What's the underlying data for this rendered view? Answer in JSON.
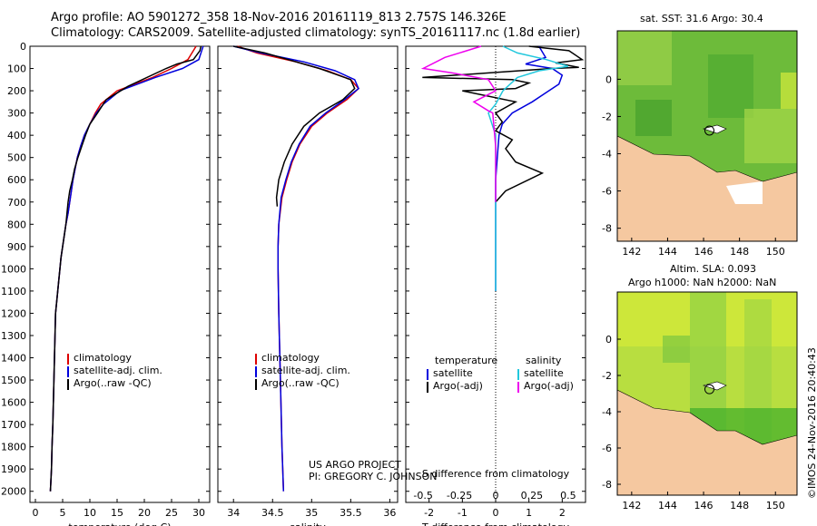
{
  "header": {
    "title_line1": "Argo profile: AO 5901272_358 18-Nov-2016 20161119_813 2.757S 146.326E",
    "title_line2": "Climatology: CARS2009. Satellite-adjusted climatology: synTS_20161117.nc (1.8d earlier)"
  },
  "credits": {
    "line1": "US ARGO PROJECT",
    "line2": "PI: GREGORY C. JOHNSON"
  },
  "maps": {
    "sst_title": "sat. SST: 31.6 Argo: 30.4",
    "sla_line1": "Altim. SLA: 0.093",
    "sla_line2": "Argo h1000: NaN h2000: NaN",
    "x_ticks": [
      "142",
      "144",
      "146",
      "148",
      "150"
    ],
    "y_ticks": [
      "0",
      "-2",
      "-4",
      "-6",
      "-8"
    ],
    "float_lon": 146.326,
    "float_lat": -2.757,
    "colors": {
      "land": "#f5c8a0",
      "ocean": "#7fc64a",
      "sst_light": "#c8e63c",
      "sla_dark": "#3fae2a"
    }
  },
  "imos": "©IMOS 24-Nov-2016 20:40:43",
  "chart_data": [
    {
      "type": "line",
      "id": "temperature",
      "xlabel": "temperature (deg C)",
      "ylabel": "",
      "xlim": [
        -1,
        32
      ],
      "ylim": [
        2050,
        0
      ],
      "xticks": [
        0,
        5,
        10,
        15,
        20,
        25,
        30
      ],
      "yticks": [
        0,
        100,
        200,
        300,
        400,
        500,
        600,
        700,
        800,
        900,
        1000,
        1100,
        1200,
        1300,
        1400,
        1500,
        1600,
        1700,
        1800,
        1900,
        2000
      ],
      "legend": [
        "climatology",
        "satellite-adj. clim.",
        "Argo(..raw -QC)"
      ],
      "series": [
        {
          "name": "climatology",
          "color": "#dd0000",
          "x": [
            29.5,
            28.0,
            25.0,
            21.5,
            15.0,
            12.0,
            11.0,
            10.0,
            9.0,
            8.3,
            7.7,
            7.3,
            6.9,
            6.6,
            6.3,
            6.0,
            5.6,
            5.3,
            5.0,
            4.7,
            4.5,
            4.3,
            4.1,
            3.9,
            3.7,
            3.6,
            3.5,
            3.4,
            3.3,
            3.2,
            3.05,
            2.95,
            2.85,
            2.75
          ],
          "y": [
            0,
            60,
            100,
            140,
            200,
            260,
            300,
            350,
            400,
            450,
            500,
            550,
            600,
            650,
            700,
            750,
            800,
            850,
            900,
            950,
            1000,
            1050,
            1100,
            1150,
            1200,
            1300,
            1400,
            1500,
            1600,
            1700,
            1800,
            1900,
            1950,
            2000
          ]
        },
        {
          "name": "satellite-adj. clim.",
          "color": "#0000dd",
          "x": [
            30.8,
            30.0,
            27.0,
            22.0,
            15.5,
            12.5,
            11.2,
            10.0,
            9.0,
            8.3,
            7.7,
            7.3,
            6.9,
            6.6,
            6.3,
            6.0,
            5.6,
            5.3,
            5.0,
            4.7,
            4.5,
            4.3,
            4.1,
            3.9,
            3.7,
            3.6,
            3.5,
            3.4,
            3.3,
            3.2,
            3.05,
            2.95,
            2.85,
            2.75
          ],
          "y": [
            0,
            60,
            100,
            140,
            200,
            260,
            300,
            350,
            400,
            450,
            500,
            550,
            600,
            650,
            700,
            750,
            800,
            850,
            900,
            950,
            1000,
            1050,
            1100,
            1150,
            1200,
            1300,
            1400,
            1500,
            1600,
            1700,
            1800,
            1900,
            1950,
            2000
          ]
        },
        {
          "name": "Argo(..raw -QC)",
          "color": "#000000",
          "x": [
            30.4,
            30.2,
            29.0,
            26.0,
            24.0,
            17.0,
            13.0,
            11.4,
            10.0,
            9.2,
            8.5,
            7.8,
            7.2,
            6.8,
            6.3,
            6.0,
            5.6,
            5.3,
            5.0,
            4.7,
            4.5,
            4.3,
            4.1,
            3.9,
            3.7,
            3.6,
            3.5,
            3.4,
            3.3,
            3.2,
            3.05,
            2.95,
            2.85,
            2.75
          ],
          "y": [
            0,
            20,
            60,
            80,
            100,
            180,
            240,
            300,
            350,
            400,
            450,
            500,
            550,
            600,
            650,
            700,
            800,
            850,
            900,
            950,
            1000,
            1050,
            1100,
            1150,
            1200,
            1300,
            1400,
            1500,
            1600,
            1700,
            1800,
            1900,
            1950,
            2000
          ]
        }
      ]
    },
    {
      "type": "line",
      "id": "salinity",
      "xlabel": "salinity",
      "ylabel": "",
      "xlim": [
        33.8,
        36.1
      ],
      "ylim": [
        2050,
        0
      ],
      "xticks": [
        34,
        34.5,
        35,
        35.5,
        36
      ],
      "xtick_labels": [
        "34",
        "34.5",
        "35",
        "35.5",
        "36"
      ],
      "legend": [
        "climatology",
        "satellite-adj. clim.",
        "Argo(..raw -QC)"
      ],
      "series": [
        {
          "name": "climatology",
          "color": "#dd0000",
          "x": [
            34.05,
            34.3,
            34.8,
            35.2,
            35.5,
            35.6,
            35.45,
            35.2,
            35.0,
            34.85,
            34.75,
            34.68,
            34.62,
            34.58,
            34.57,
            34.57,
            34.58,
            34.6,
            34.62,
            34.64
          ],
          "y": [
            0,
            30,
            70,
            110,
            150,
            190,
            240,
            300,
            360,
            440,
            520,
            600,
            680,
            800,
            900,
            1000,
            1200,
            1500,
            1800,
            2000
          ]
        },
        {
          "name": "satellite-adj. clim.",
          "color": "#0000dd",
          "x": [
            34.0,
            34.35,
            34.9,
            35.3,
            35.55,
            35.6,
            35.42,
            35.18,
            34.98,
            34.84,
            34.74,
            34.67,
            34.61,
            34.58,
            34.57,
            34.57,
            34.58,
            34.6,
            34.62,
            34.64
          ],
          "y": [
            0,
            30,
            70,
            110,
            150,
            190,
            240,
            300,
            360,
            440,
            520,
            600,
            680,
            800,
            900,
            1000,
            1200,
            1500,
            1800,
            2000
          ]
        },
        {
          "name": "Argo(..raw -QC)",
          "color": "#000000",
          "x": [
            34.0,
            34.4,
            34.7,
            34.9,
            35.1,
            35.5,
            35.55,
            35.4,
            35.1,
            34.9,
            34.75,
            34.65,
            34.58,
            34.55,
            34.56
          ],
          "y": [
            0,
            30,
            60,
            80,
            100,
            150,
            190,
            240,
            300,
            360,
            440,
            520,
            600,
            680,
            720
          ]
        }
      ]
    },
    {
      "type": "line",
      "id": "differences",
      "xlabel": "T difference from climatology",
      "xlabel_top": "S difference from climatology",
      "xlim": [
        -2.7,
        2.7
      ],
      "ylim": [
        2050,
        0
      ],
      "xticks": [
        -2,
        -1,
        0,
        1,
        2
      ],
      "xtick_labels": [
        "-2",
        "-1",
        "0",
        "1",
        "2"
      ],
      "top_ticks": [
        -0.5,
        -0.25,
        0,
        0.25,
        0.5
      ],
      "top_tick_labels": [
        "-0.5",
        "-0.25",
        "0",
        "0.25",
        "0.5"
      ],
      "legend_titles": [
        "temperature",
        "salinity"
      ],
      "legend": [
        "satellite",
        "Argo(-adj)",
        "satellite",
        "Argo(-adj)"
      ],
      "series": [
        {
          "name": "T satellite",
          "color": "#0000dd",
          "x": [
            1.3,
            1.5,
            0.9,
            1.7,
            2.0,
            1.9,
            1.5,
            1.1,
            0.5,
            0.2,
            0.1,
            0.05,
            0.0,
            0.0,
            0.0,
            0.0
          ],
          "y": [
            0,
            50,
            80,
            100,
            130,
            170,
            210,
            250,
            300,
            350,
            400,
            500,
            600,
            700,
            900,
            1100
          ]
        },
        {
          "name": "T Argo(-adj)",
          "color": "#000000",
          "x": [
            1.0,
            2.2,
            2.6,
            1.8,
            2.5,
            1.7,
            -2.2,
            0.5,
            1.0,
            0.6,
            -1.0,
            0.6,
            0.0,
            0.2,
            0.0,
            0.5,
            0.3,
            0.5,
            0.6,
            1.4,
            0.3,
            0.0
          ],
          "y": [
            0,
            20,
            60,
            75,
            95,
            100,
            140,
            150,
            165,
            190,
            200,
            250,
            300,
            340,
            380,
            420,
            460,
            500,
            520,
            570,
            650,
            700
          ]
        },
        {
          "name": "S satellite",
          "color": "#22c8dd",
          "x": [
            0.05,
            0.15,
            0.35,
            0.5,
            0.3,
            0.15,
            0.05,
            0.0,
            -0.05,
            0.0,
            0.0,
            0.0,
            0.0,
            0.0,
            0.0
          ],
          "y": [
            0,
            30,
            60,
            90,
            110,
            140,
            200,
            260,
            300,
            400,
            500,
            600,
            700,
            900,
            1100
          ]
        },
        {
          "name": "S Argo(-adj)",
          "color": "#ee00ee",
          "x": [
            -0.1,
            -0.35,
            -0.5,
            -0.3,
            -0.05,
            0.0,
            -0.15,
            -0.05,
            -0.02,
            0.0,
            0.0
          ],
          "y": [
            0,
            50,
            100,
            120,
            150,
            200,
            250,
            290,
            300,
            450,
            700
          ]
        }
      ]
    }
  ]
}
